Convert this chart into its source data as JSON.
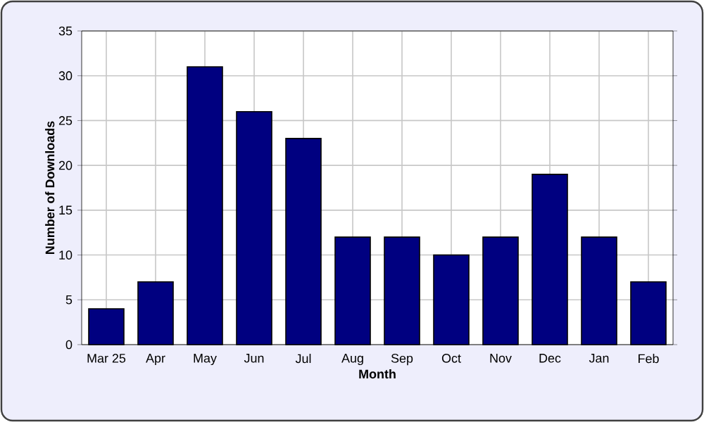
{
  "chart_data": {
    "type": "bar",
    "xlabel": "Month",
    "ylabel": "Number of Downloads",
    "categories": [
      "Mar 25",
      "Apr",
      "May",
      "Jun",
      "Jul",
      "Aug",
      "Sep",
      "Oct",
      "Nov",
      "Dec",
      "Jan",
      "Feb"
    ],
    "values": [
      4,
      7,
      31,
      26,
      23,
      12,
      12,
      10,
      12,
      19,
      12,
      7
    ],
    "color": "#000080",
    "ylim": [
      0,
      35
    ],
    "yticks": [
      0,
      5,
      10,
      15,
      20,
      25,
      30,
      35
    ],
    "grid": true
  }
}
